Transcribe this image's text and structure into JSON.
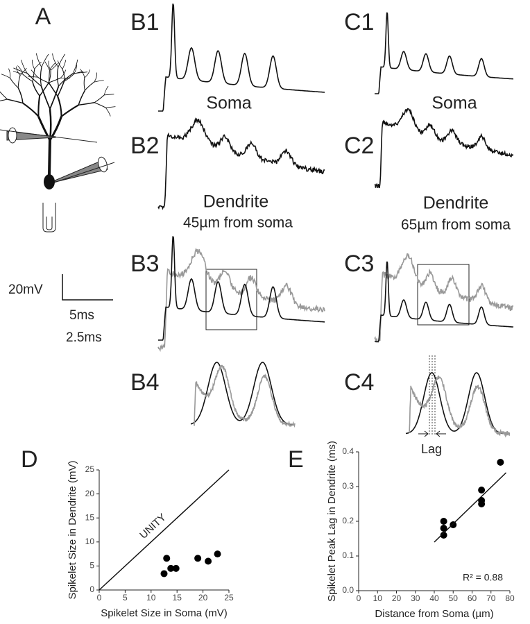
{
  "panel_labels": [
    "A",
    "B1",
    "C1",
    "B2",
    "C2",
    "B3",
    "C3",
    "B4",
    "C4",
    "D",
    "E"
  ],
  "trace_labels": [
    "Soma",
    "Soma",
    "Dendrite",
    "45µm from soma",
    "Dendrite",
    "65µm from soma"
  ],
  "scale_bar": {
    "voltage": "20mV",
    "time_b": "5ms",
    "time_c": "2.5ms"
  },
  "lag_label": "Lag",
  "chart_data": [
    {
      "type": "scatter",
      "x_label": "Spikelet Size in Soma (mV)",
      "y_label": "Spikelet Size in Dendrite (mV)",
      "annotation": "UNITY",
      "color": "#000000",
      "xlim": [
        0,
        25
      ],
      "ylim": [
        0,
        25
      ],
      "xticks": [
        0,
        5,
        10,
        15,
        20,
        25
      ],
      "yticks": [
        0,
        5,
        10,
        15,
        20,
        25
      ],
      "x": [
        12.5,
        13,
        13.8,
        14.8,
        19,
        21,
        22.8
      ],
      "values": [
        3.4,
        6.6,
        4.5,
        4.5,
        6.6,
        6,
        7.5
      ]
    },
    {
      "type": "scatter",
      "x_label": "Distance from Soma (µm)",
      "y_label": "Spikelet Peak Lag in Dendrite (ms)",
      "annotation": "R² = 0.88",
      "color": "#000000",
      "xlim": [
        0,
        80
      ],
      "ylim": [
        0,
        0.4
      ],
      "xticks": [
        0,
        10,
        20,
        30,
        40,
        50,
        60,
        70,
        80
      ],
      "yticks": [
        {
          "value": 0,
          "label": "0.0"
        },
        0.1,
        0.2,
        0.3,
        0.4
      ],
      "x": [
        45,
        45,
        45,
        50,
        65,
        65,
        65,
        75
      ],
      "values": [
        0.2,
        0.18,
        0.16,
        0.19,
        0.29,
        0.26,
        0.25,
        0.37
      ],
      "fit": {
        "x": [
          40,
          78
        ],
        "values": [
          0.14,
          0.34
        ]
      }
    }
  ]
}
